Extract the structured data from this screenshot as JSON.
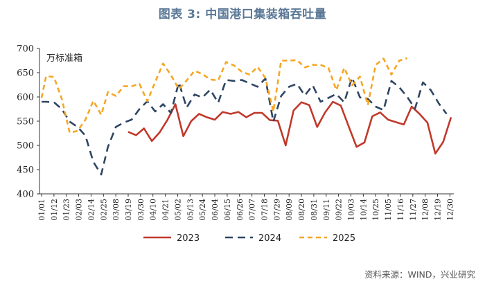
{
  "title": "图表 3:  中国港口集装箱吞吐量",
  "source": "资料来源：WIND，兴业研究",
  "chart_data": {
    "type": "line",
    "unit_label": "万标准箱",
    "ylim": [
      400,
      700
    ],
    "yticks": [
      400,
      450,
      500,
      550,
      600,
      650,
      700
    ],
    "x_tick_labels": [
      "01/01",
      "01/12",
      "01/23",
      "02/03",
      "02/14",
      "02/25",
      "03/08",
      "03/19",
      "03/30",
      "04/10",
      "04/21",
      "05/02",
      "05/13",
      "05/24",
      "06/04",
      "06/15",
      "06/26",
      "07/07",
      "07/18",
      "07/29",
      "08/09",
      "08/20",
      "08/31",
      "09/11",
      "09/22",
      "10/03",
      "10/14",
      "10/25",
      "11/05",
      "11/16",
      "11/27",
      "12/08",
      "12/19",
      "12/30"
    ],
    "colors": {
      "2023": "#c0392b",
      "2024": "#2e4563",
      "2025": "#f5a623"
    },
    "series": [
      {
        "name": "2023",
        "x": [
          "03/19",
          "03/26",
          "04/02",
          "04/09",
          "04/16",
          "04/23",
          "04/30",
          "05/07",
          "05/14",
          "05/21",
          "05/28",
          "06/04",
          "06/11",
          "06/18",
          "06/25",
          "07/02",
          "07/09",
          "07/16",
          "07/23",
          "07/30",
          "08/06",
          "08/13",
          "08/20",
          "08/27",
          "09/03",
          "09/10",
          "09/17",
          "09/24",
          "10/01",
          "10/08",
          "10/15",
          "10/22",
          "10/29",
          "11/05",
          "11/12",
          "11/19",
          "11/26",
          "12/03",
          "12/10",
          "12/17",
          "12/24",
          "12/31"
        ],
        "values": [
          528,
          521,
          535,
          509,
          527,
          553,
          585,
          519,
          550,
          565,
          558,
          553,
          569,
          565,
          569,
          558,
          567,
          567,
          552,
          551,
          500,
          572,
          589,
          583,
          538,
          568,
          590,
          582,
          539,
          497,
          506,
          560,
          568,
          553,
          548,
          543,
          580,
          565,
          547,
          483,
          507,
          558
        ]
      },
      {
        "name": "2024",
        "x": [
          "01/01",
          "01/05",
          "01/12",
          "01/19",
          "01/26",
          "02/02",
          "02/09",
          "02/16",
          "02/23",
          "03/01",
          "03/08",
          "03/15",
          "03/22",
          "03/29",
          "04/05",
          "04/12",
          "04/19",
          "04/26",
          "05/03",
          "05/10",
          "05/17",
          "05/24",
          "05/31",
          "06/07",
          "06/14",
          "06/21",
          "06/28",
          "07/05",
          "07/12",
          "07/19",
          "07/26",
          "08/02",
          "08/09",
          "08/16",
          "08/23",
          "08/30",
          "09/06",
          "09/13",
          "09/20",
          "09/27",
          "10/04",
          "10/11",
          "10/18",
          "10/25",
          "11/01",
          "11/08",
          "11/15",
          "11/22",
          "11/29",
          "12/06",
          "12/13",
          "12/20",
          "12/27"
        ],
        "values": [
          590,
          590,
          589,
          575,
          549,
          538,
          520,
          466,
          440,
          497,
          538,
          547,
          553,
          575,
          591,
          570,
          585,
          567,
          630,
          578,
          605,
          599,
          615,
          588,
          635,
          633,
          635,
          628,
          621,
          638,
          549,
          602,
          621,
          627,
          603,
          624,
          590,
          598,
          606,
          589,
          640,
          599,
          596,
          580,
          573,
          633,
          620,
          600,
          576,
          630,
          614,
          587,
          565
        ]
      },
      {
        "name": "2025",
        "x": [
          "01/01",
          "01/05",
          "01/12",
          "01/19",
          "01/26",
          "02/02",
          "02/09",
          "02/16",
          "02/23",
          "03/01",
          "03/08",
          "03/15",
          "03/22",
          "03/29",
          "04/05",
          "04/12",
          "04/19",
          "04/26",
          "05/03",
          "05/10",
          "05/17",
          "05/24",
          "05/31",
          "06/07",
          "06/14",
          "06/21",
          "06/28",
          "07/05",
          "07/12",
          "07/19",
          "07/26",
          "08/02",
          "08/09",
          "08/16",
          "08/23",
          "08/30",
          "09/06",
          "09/13",
          "09/20",
          "09/27",
          "10/04",
          "10/11",
          "10/18",
          "10/25",
          "11/01",
          "11/08",
          "11/15",
          "11/22"
        ],
        "values": [
          598,
          643,
          641,
          596,
          526,
          530,
          553,
          592,
          563,
          610,
          602,
          622,
          622,
          627,
          591,
          631,
          669,
          645,
          616,
          634,
          654,
          647,
          636,
          634,
          672,
          665,
          652,
          646,
          662,
          639,
          570,
          675,
          675,
          676,
          661,
          666,
          666,
          660,
          614,
          660,
          624,
          642,
          583,
          666,
          679,
          646,
          675,
          680
        ]
      }
    ]
  }
}
